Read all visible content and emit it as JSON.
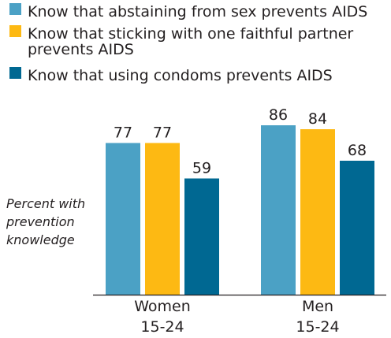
{
  "chart_data": {
    "type": "bar",
    "categories": [
      [
        "Women",
        "15-24"
      ],
      [
        "Men",
        "15-24"
      ]
    ],
    "series": [
      {
        "name": "Know that abstaining from sex prevents AIDS",
        "values": [
          77,
          86
        ],
        "color": "#4ba1c5"
      },
      {
        "name": [
          "Know that sticking with one faithful partner",
          "prevents AIDS"
        ],
        "values": [
          77,
          84
        ],
        "color": "#fdb913"
      },
      {
        "name": "Know that using condoms prevents AIDS",
        "values": [
          59,
          68
        ],
        "color": "#006892"
      }
    ],
    "ylabel": [
      "Percent with",
      "prevention",
      "knowledge"
    ],
    "ylim": [
      0,
      100
    ],
    "grid": false,
    "legend_position": "top-left"
  }
}
